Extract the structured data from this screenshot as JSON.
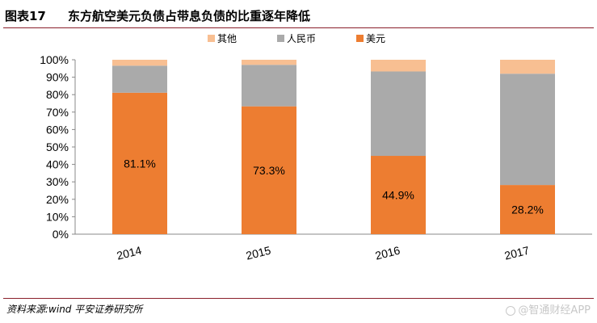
{
  "figure": {
    "number": "图表17",
    "title": "东方航空美元负债占带息负债的比重逐年降低",
    "source": "资料来源:wind 平安证券研究所",
    "watermark": "@智通财经APP"
  },
  "colors": {
    "usd": "#ed7d31",
    "rmb": "#aaaaaa",
    "other": "#f8bf92",
    "rule": "#8a1f2b"
  },
  "chart_data": {
    "type": "bar",
    "stacked": true,
    "percent": true,
    "categories": [
      "2014",
      "2015",
      "2016",
      "2017"
    ],
    "series": [
      {
        "name": "美元",
        "values": [
          81.1,
          73.3,
          44.9,
          28.2
        ],
        "color": "#ed7d31",
        "labels": [
          "81.1%",
          "73.3%",
          "44.9%",
          "28.2%"
        ]
      },
      {
        "name": "人民币",
        "values": [
          15.5,
          23.8,
          48.4,
          63.8
        ],
        "color": "#aaaaaa"
      },
      {
        "name": "其他",
        "values": [
          3.4,
          2.9,
          6.7,
          8.0
        ],
        "color": "#f8bf92"
      }
    ],
    "legend_order": [
      "其他",
      "人民币",
      "美元"
    ],
    "legend_position": "top",
    "ylim": [
      0,
      100
    ],
    "yticks": [
      "0%",
      "10%",
      "20%",
      "30%",
      "40%",
      "50%",
      "60%",
      "70%",
      "80%",
      "90%",
      "100%"
    ],
    "xlabel": "",
    "ylabel": "",
    "grid": false
  }
}
